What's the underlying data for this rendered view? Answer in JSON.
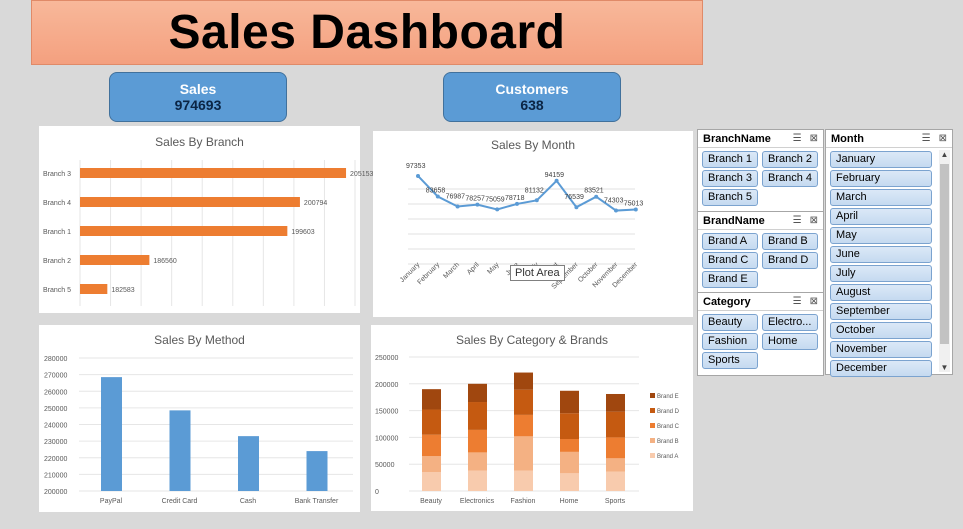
{
  "header": {
    "title": "Sales Dashboard"
  },
  "kpis": {
    "sales": {
      "label": "Sales",
      "value": "974693"
    },
    "customers": {
      "label": "Customers",
      "value": "638"
    }
  },
  "charts": {
    "branch": {
      "title": "Sales By Branch"
    },
    "month": {
      "title": "Sales By Month"
    },
    "method": {
      "title": "Sales By Method"
    },
    "category": {
      "title": "Sales By Category & Brands"
    }
  },
  "tooltip": {
    "text": "Plot Area"
  },
  "slicers": {
    "branch": {
      "title": "BranchName",
      "items": [
        "Branch 1",
        "Branch 2",
        "Branch 3",
        "Branch 4",
        "Branch 5"
      ]
    },
    "brand": {
      "title": "BrandName",
      "items": [
        "Brand A",
        "Brand B",
        "Brand C",
        "Brand D",
        "Brand E"
      ]
    },
    "category": {
      "title": "Category",
      "items": [
        "Beauty",
        "Electro...",
        "Fashion",
        "Home",
        "Sports"
      ]
    },
    "month": {
      "title": "Month",
      "items": [
        "January",
        "February",
        "March",
        "April",
        "May",
        "June",
        "July",
        "August",
        "September",
        "October",
        "November",
        "December"
      ]
    },
    "icon_names": [
      "multi-select-icon",
      "clear-filter-icon"
    ]
  },
  "chart_data": [
    {
      "type": "bar",
      "orientation": "horizontal",
      "title": "Sales By Branch",
      "categories": [
        "Branch 3",
        "Branch 4",
        "Branch 1",
        "Branch 2",
        "Branch 5"
      ],
      "values": [
        205153,
        200794,
        199603,
        186560,
        182583
      ],
      "color": "#ed7d31",
      "xlim": [
        180000,
        206000
      ]
    },
    {
      "type": "line",
      "title": "Sales By Month",
      "categories": [
        "January",
        "February",
        "March",
        "April",
        "May",
        "June",
        "July",
        "August",
        "September",
        "October",
        "November",
        "December"
      ],
      "values": [
        97353,
        83658,
        76987,
        78257,
        75059,
        78718,
        81132,
        94159,
        76539,
        83521,
        74303,
        75013
      ],
      "color": "#5b9bd5"
    },
    {
      "type": "bar",
      "title": "Sales By Method",
      "categories": [
        "PayPal",
        "Credit Card",
        "Cash",
        "Bank Transfer"
      ],
      "values": [
        268500,
        248500,
        233000,
        224000
      ],
      "color": "#5b9bd5",
      "ylim": [
        200000,
        280000
      ],
      "yticks": [
        "200000",
        "210000",
        "220000",
        "230000",
        "240000",
        "250000",
        "260000",
        "270000",
        "280000"
      ]
    },
    {
      "type": "bar",
      "stacked": true,
      "title": "Sales By Category & Brands",
      "categories": [
        "Beauty",
        "Electronics",
        "Fashion",
        "Home",
        "Sports"
      ],
      "series": [
        {
          "name": "Brand A",
          "values": [
            35000,
            38000,
            38000,
            33000,
            36000
          ],
          "color": "#f8cbad"
        },
        {
          "name": "Brand B",
          "values": [
            30000,
            34000,
            64000,
            40000,
            25000
          ],
          "color": "#f4b183"
        },
        {
          "name": "Brand C",
          "values": [
            40000,
            42000,
            40000,
            24000,
            39000
          ],
          "color": "#ed7d31"
        },
        {
          "name": "Brand D",
          "values": [
            47000,
            52000,
            47000,
            48000,
            48000
          ],
          "color": "#c55a11"
        },
        {
          "name": "Brand E",
          "values": [
            38000,
            34000,
            32000,
            42000,
            33000
          ],
          "color": "#a0470f"
        }
      ],
      "ylim": [
        0,
        250000
      ],
      "yticks": [
        "0",
        "50000",
        "100000",
        "150000",
        "200000",
        "250000"
      ],
      "legend": "right"
    }
  ]
}
